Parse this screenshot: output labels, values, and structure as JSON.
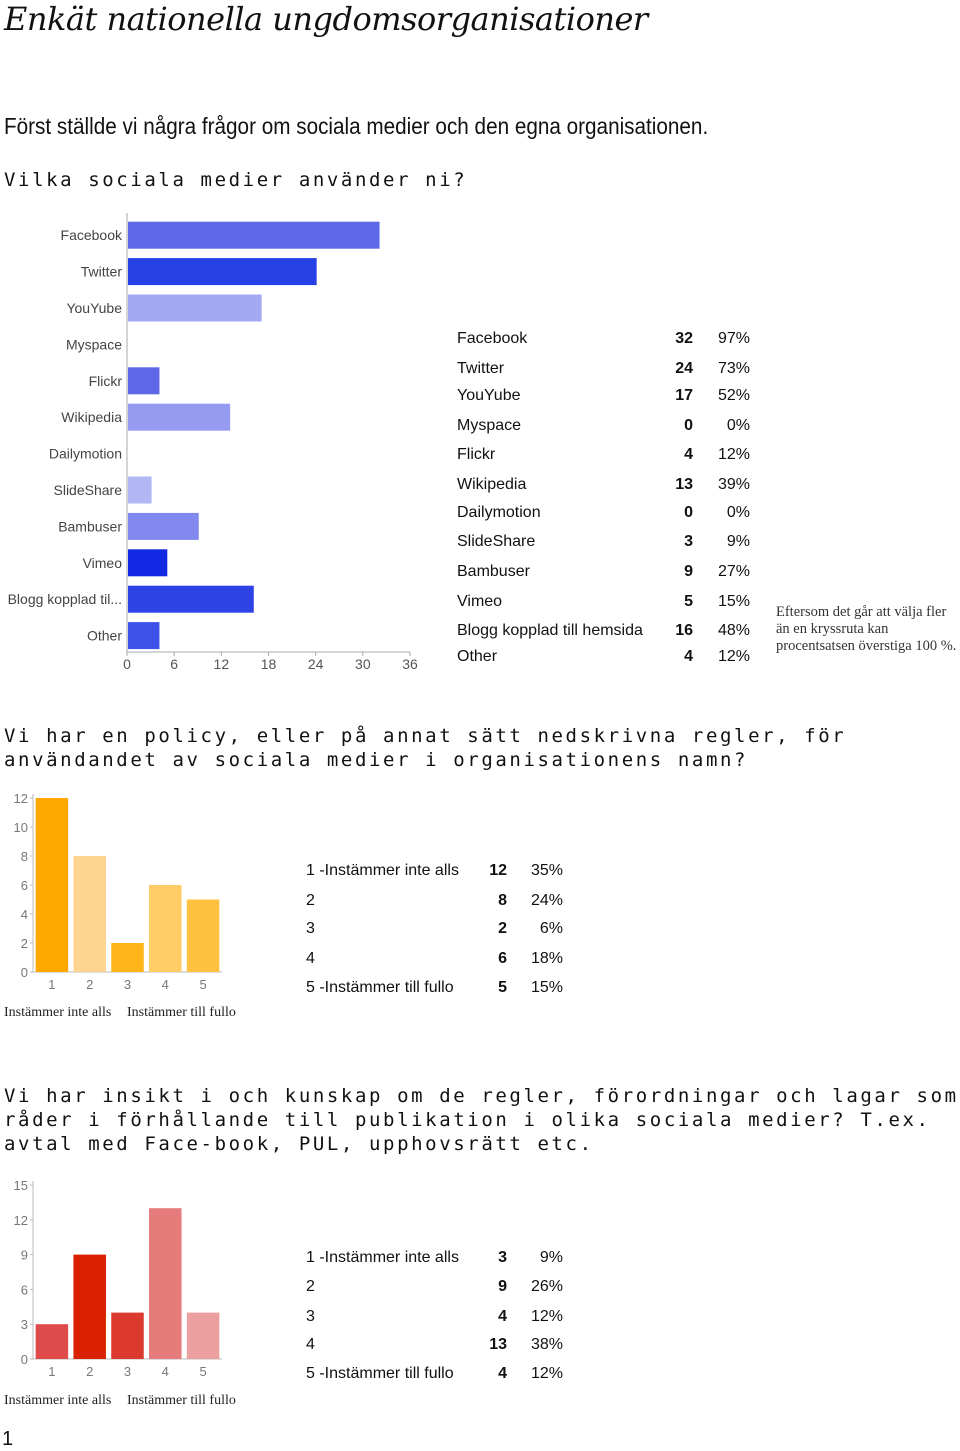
{
  "title": "Enkät nationella ungdomsorganisationer",
  "intro": "Först ställde vi några frågor om sociala medier och  den egna organisationen.",
  "q1": {
    "question": "Vilka sociala medier använder ni?",
    "rows": [
      {
        "label": "Facebook",
        "count": "32",
        "pct": "97%"
      },
      {
        "label": "Twitter",
        "count": "24",
        "pct": "73%"
      },
      {
        "label": "YouYube",
        "count": "17",
        "pct": "52%"
      },
      {
        "label": "Myspace",
        "count": "0",
        "pct": "0%"
      },
      {
        "label": "Flickr",
        "count": "4",
        "pct": "12%"
      },
      {
        "label": "Wikipedia",
        "count": "13",
        "pct": "39%"
      },
      {
        "label": "Dailymotion",
        "count": "0",
        "pct": "0%"
      },
      {
        "label": "SlideShare",
        "count": "3",
        "pct": "9%"
      },
      {
        "label": "Bambuser",
        "count": "9",
        "pct": "27%"
      },
      {
        "label": "Vimeo",
        "count": "5",
        "pct": "15%"
      },
      {
        "label": "Blogg kopplad till hemsida",
        "count": "16",
        "pct": "48%"
      },
      {
        "label": "Other",
        "count": "4",
        "pct": "12%"
      }
    ],
    "note": "Eftersom det går att välja fler än en kryssruta kan procentsatsen överstiga 100 %."
  },
  "q2": {
    "question": "Vi har en policy, eller på annat sätt nedskrivna regler, för användandet av sociala medier i organisationens namn?",
    "rows": [
      {
        "label": "1 -Instämmer inte alls",
        "count": "12",
        "pct": "35%"
      },
      {
        "label": "2",
        "count": "8",
        "pct": "24%"
      },
      {
        "label": "3",
        "count": "2",
        "pct": "6%"
      },
      {
        "label": "4",
        "count": "6",
        "pct": "18%"
      },
      {
        "label": "5 -Instämmer till fullo",
        "count": "5",
        "pct": "15%"
      }
    ],
    "scale_left": "Instämmer inte alls",
    "scale_right": "Instämmer till fullo"
  },
  "q3": {
    "question": "Vi har insikt i och kunskap om de regler, förordningar och lagar som råder i förhållande till publikation i olika sociala medier? T.ex. avtal med Face-book, PUL, upphovsrätt etc.",
    "rows": [
      {
        "label": "1 -Instämmer inte alls",
        "count": "3",
        "pct": "9%"
      },
      {
        "label": "2",
        "count": "9",
        "pct": "26%"
      },
      {
        "label": "3",
        "count": "4",
        "pct": "12%"
      },
      {
        "label": "4",
        "count": "13",
        "pct": "38%"
      },
      {
        "label": "5 -Instämmer till fullo",
        "count": "4",
        "pct": "12%"
      }
    ],
    "scale_left": "Instämmer inte alls",
    "scale_right": "Instämmer till fullo"
  },
  "page_number": "1",
  "chart_data": [
    {
      "type": "bar",
      "orientation": "horizontal",
      "categories": [
        "Facebook",
        "Twitter",
        "YouYube",
        "Myspace",
        "Flickr",
        "Wikipedia",
        "Dailymotion",
        "SlideShare",
        "Bambuser",
        "Vimeo",
        "Blogg kopplad til...",
        "Other"
      ],
      "values": [
        32,
        24,
        17,
        0,
        4,
        13,
        0,
        3,
        9,
        5,
        16,
        4
      ],
      "colors": [
        "#5d67e8",
        "#2541e6",
        "#a3a9f2",
        "#5d67e8",
        "#5d67e8",
        "#959bf0",
        "#5d67e8",
        "#b1b6f5",
        "#8189ee",
        "#1229e4",
        "#2d43e6",
        "#3d52e8"
      ],
      "xticks": [
        "0",
        "6",
        "12",
        "18",
        "24",
        "30",
        "36"
      ],
      "xlim": [
        0,
        36
      ]
    },
    {
      "type": "bar",
      "categories": [
        "1",
        "2",
        "3",
        "4",
        "5"
      ],
      "values": [
        12,
        8,
        2,
        6,
        5
      ],
      "colors": [
        "#ffa800",
        "#ffd490",
        "#ffb41a",
        "#ffcc66",
        "#ffc13f"
      ],
      "yticks": [
        "0",
        "2",
        "4",
        "6",
        "8",
        "10",
        "12"
      ],
      "ylim": [
        0,
        12
      ]
    },
    {
      "type": "bar",
      "categories": [
        "1",
        "2",
        "3",
        "4",
        "5"
      ],
      "values": [
        3,
        9,
        4,
        13,
        4
      ],
      "colors": [
        "#df4b4b",
        "#d92000",
        "#dd3a2f",
        "#e57b7b",
        "#ec9f9f"
      ],
      "yticks": [
        "0",
        "3",
        "6",
        "9",
        "12",
        "15"
      ],
      "ylim": [
        0,
        15
      ]
    }
  ]
}
